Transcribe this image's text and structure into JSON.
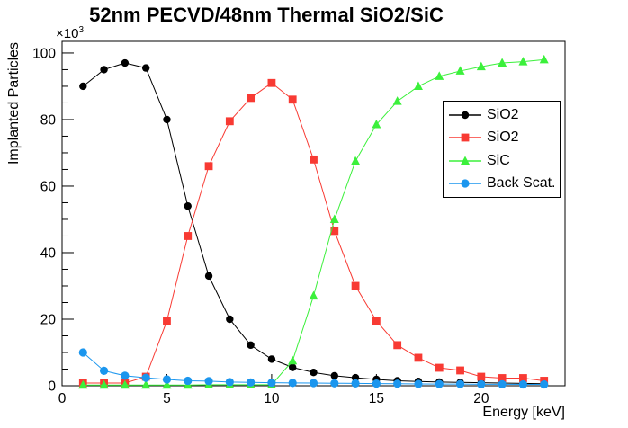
{
  "chart_data": {
    "type": "line",
    "title": "52nm PECVD/48nm Thermal SiO2/SiC",
    "xlabel": "Energy [keV]",
    "ylabel": "Implanted Particles",
    "y_multiplier": "×10",
    "y_multiplier_exp": "3",
    "x": [
      1,
      2,
      3,
      4,
      5,
      6,
      7,
      8,
      9,
      10,
      11,
      12,
      13,
      14,
      15,
      16,
      17,
      18,
      19,
      20,
      21,
      22,
      23
    ],
    "series": [
      {
        "name": "SiO2",
        "color": "#000000",
        "marker": "circle",
        "marker_size": 4.2,
        "values": [
          90,
          95,
          97,
          95.5,
          80,
          54,
          33,
          20,
          12.2,
          8,
          5.5,
          4,
          3,
          2.4,
          1.9,
          1.5,
          1.3,
          1.1,
          1.0,
          0.9,
          0.8,
          0.7,
          0.6
        ]
      },
      {
        "name": "SiO2",
        "color": "#f83a33",
        "marker": "square",
        "marker_size": 4.4,
        "values": [
          0.8,
          0.8,
          0.8,
          2.7,
          19.5,
          45,
          66,
          79.5,
          86.5,
          91,
          86,
          68,
          46.5,
          30,
          19.5,
          12.2,
          8.4,
          5.4,
          4.6,
          2.7,
          2.3,
          2.3,
          1.5
        ]
      },
      {
        "name": "SiC",
        "color": "#3bf03b",
        "marker": "triangle",
        "marker_size": 5,
        "values": [
          0.2,
          0.2,
          0.2,
          0.2,
          0.2,
          0.2,
          0.3,
          0.3,
          0.3,
          0.3,
          7.5,
          27,
          50,
          67.5,
          78.5,
          85.5,
          90,
          93,
          94.6,
          95.9,
          97,
          97.4,
          98
        ]
      },
      {
        "name": "Back Scat.",
        "color": "#1b96ee",
        "marker": "circle",
        "marker_size": 4.6,
        "values": [
          10,
          4.5,
          3,
          2.4,
          1.9,
          1.5,
          1.4,
          1.1,
          1.0,
          0.9,
          0.85,
          0.8,
          0.75,
          0.7,
          0.65,
          0.6,
          0.55,
          0.5,
          0.5,
          0.45,
          0.45,
          0.4,
          0.4
        ]
      }
    ],
    "xlim": [
      0,
      24
    ],
    "ylim": [
      0,
      103.5
    ],
    "xticks": [
      0,
      5,
      10,
      15,
      20
    ],
    "yticks": [
      0,
      20,
      40,
      60,
      80,
      100
    ],
    "x_minor_step": 1,
    "y_minor_step": 5,
    "grid": false,
    "legend_position": "right-middle",
    "frame_color": "#000000",
    "background_color": "#ffffff"
  }
}
